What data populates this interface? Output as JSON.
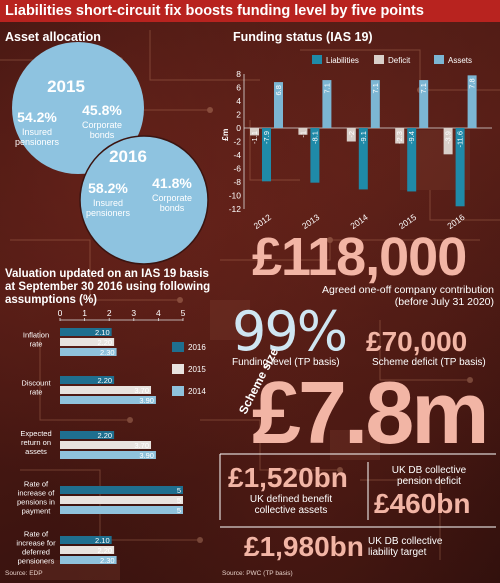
{
  "title": "Liabilities short-circuit fix boosts funding level by five points",
  "colors": {
    "title_bg": "#b8231f",
    "liabilities": "#1f8aa8",
    "deficit": "#d9cfc9",
    "assets": "#7cb6d3",
    "y2016": "#1f6f8f",
    "y2015": "#e8e3df",
    "y2014": "#8fc2dc",
    "pie": "#8ec3e0",
    "big_text": "#f2b5a5"
  },
  "asset_allocation": {
    "title": "Asset allocation",
    "pies": [
      {
        "year": "2015",
        "left_pct": "54.2%",
        "left_label": [
          "Insured",
          "pensioners"
        ],
        "right_pct": "45.8%",
        "right_label": [
          "Corporate",
          "bonds"
        ]
      },
      {
        "year": "2016",
        "left_pct": "58.2%",
        "left_label": [
          "Insured",
          "pensioners"
        ],
        "right_pct": "41.8%",
        "right_label": [
          "Corporate",
          "bonds"
        ]
      }
    ]
  },
  "funding_status": {
    "title": "Funding status (IAS 19)",
    "unit_label": "£m"
  },
  "valuation": {
    "title": [
      "Valuation updated on an IAS 19 basis",
      "at September 30 2016 using following",
      "assumptions (%)"
    ],
    "source": "Source: EDP"
  },
  "stats": {
    "contribution_value": "£118,000",
    "contribution_label": [
      "Agreed one-off company contribution",
      "(before July 31 2020)"
    ],
    "funding_level_value": "99%",
    "funding_level_label": "Funding level (TP basis)",
    "scheme_deficit_value": "£70,000",
    "scheme_deficit_label": "Scheme deficit (TP basis)",
    "scheme_size_label": "Scheme size",
    "scheme_size_value": "£7.8m",
    "uk_db_assets_value": "£1,520bn",
    "uk_db_assets_label": [
      "UK defined benefit",
      "collective assets"
    ],
    "uk_db_deficit_label": [
      "UK DB collective",
      "pension deficit"
    ],
    "uk_db_deficit_value": "£460bn",
    "uk_db_liability_value": "£1,980bn",
    "uk_db_liability_label": [
      "UK DB collective",
      "liability target"
    ],
    "source": "Source: PWC (TP basis)"
  },
  "chart_data": [
    {
      "type": "bar",
      "title": "Funding status (IAS 19)",
      "ylabel": "£m",
      "categories": [
        "2012",
        "2013",
        "2014",
        "2015",
        "2016"
      ],
      "ylim": [
        -12,
        8
      ],
      "yticks": [
        -12,
        -10,
        -8,
        -6,
        -4,
        -2,
        0,
        2,
        4,
        6,
        8
      ],
      "series": [
        {
          "name": "Liabilities",
          "values": [
            -7.9,
            -8.1,
            -9.1,
            -9.4,
            -11.6
          ],
          "labels": [
            "-7.9",
            "-8.1",
            "-9.1",
            "-9.4",
            "-11.6"
          ]
        },
        {
          "name": "Deficit",
          "values": [
            -1.1,
            -1,
            -2,
            -2.3,
            -3.9
          ],
          "labels": [
            "-1.1",
            "-1",
            "-2",
            "-2.3",
            "-3.9"
          ]
        },
        {
          "name": "Assets",
          "values": [
            6.8,
            7.1,
            7.1,
            7.1,
            7.8
          ],
          "labels": [
            "6.8",
            "7.1",
            "7.1",
            "7.1",
            "7.8"
          ]
        }
      ],
      "legend": "top",
      "grid": false
    },
    {
      "type": "bar",
      "orientation": "horizontal",
      "title": "Valuation updated on an IAS 19 basis at September 30 2016 using following assumptions (%)",
      "categories": [
        [
          "Inflation",
          "rate"
        ],
        [
          "Discount",
          "rate"
        ],
        [
          "Expected",
          "return on",
          "assets"
        ],
        [
          "Rate of",
          "increase of",
          "pensions in",
          "payment"
        ],
        [
          "Rate of",
          "increase for",
          "deferred",
          "pensioners"
        ]
      ],
      "xlim": [
        0,
        5
      ],
      "xticks": [
        0,
        1,
        2,
        3,
        4,
        5
      ],
      "series": [
        {
          "name": "2016",
          "values": [
            2.1,
            2.2,
            2.2,
            5,
            2.1
          ],
          "labels": [
            "2.10",
            "2.20",
            "2.20",
            "5",
            "2.10"
          ]
        },
        {
          "name": "2015",
          "values": [
            2.2,
            3.7,
            3.7,
            5,
            2.2
          ],
          "labels": [
            "2.20",
            "3.70",
            "3.70",
            "5",
            "2.20"
          ]
        },
        {
          "name": "2014",
          "values": [
            2.3,
            3.9,
            3.9,
            5,
            2.3
          ],
          "labels": [
            "2.30",
            "3.90",
            "3.90",
            "5",
            "2.30"
          ]
        }
      ],
      "legend": "right",
      "grid": false
    }
  ]
}
